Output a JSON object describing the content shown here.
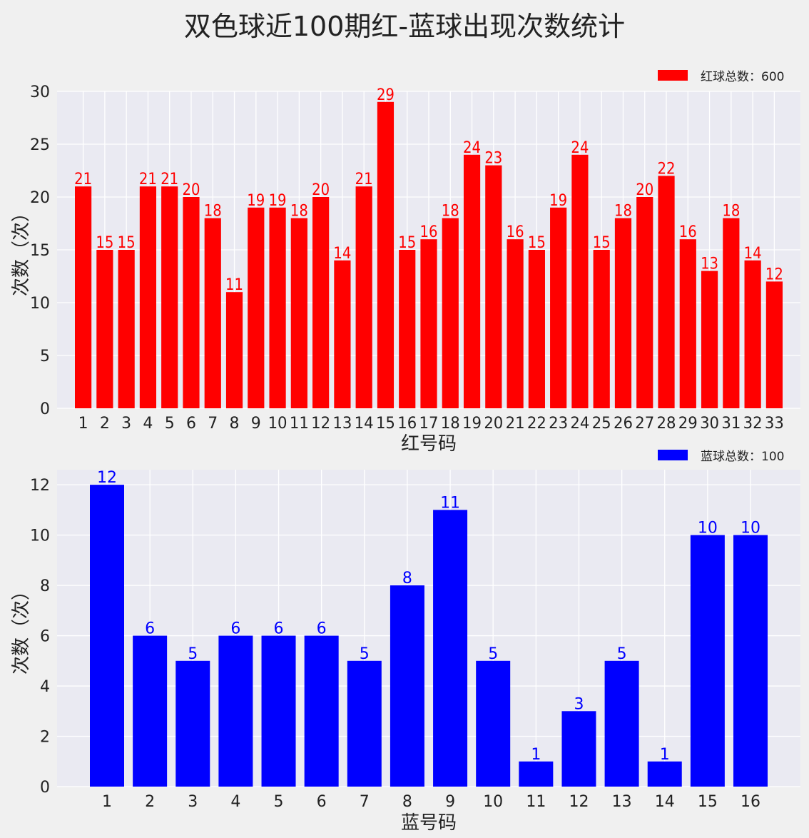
{
  "title": "双色球近100期红-蓝球出现次数统计",
  "chart_data": [
    {
      "type": "bar",
      "name": "red",
      "color": "#ff0000",
      "legend": "红球总数：600",
      "legend_position": "top-right",
      "xlabel": "红号码",
      "ylabel": "次数（次）",
      "ylim": [
        0,
        30
      ],
      "yticks": [
        0,
        5,
        10,
        15,
        20,
        25,
        30
      ],
      "grid": true,
      "categories": [
        "1",
        "2",
        "3",
        "4",
        "5",
        "6",
        "7",
        "8",
        "9",
        "10",
        "11",
        "12",
        "13",
        "14",
        "15",
        "16",
        "17",
        "18",
        "19",
        "20",
        "21",
        "22",
        "23",
        "24",
        "25",
        "26",
        "27",
        "28",
        "29",
        "30",
        "31",
        "32",
        "33"
      ],
      "values": [
        21,
        15,
        15,
        21,
        21,
        20,
        18,
        11,
        19,
        19,
        18,
        20,
        14,
        21,
        29,
        15,
        16,
        18,
        24,
        23,
        16,
        15,
        19,
        24,
        15,
        18,
        20,
        22,
        16,
        13,
        18,
        14,
        12
      ]
    },
    {
      "type": "bar",
      "name": "blue",
      "color": "#0000ff",
      "legend": "蓝球总数：100",
      "legend_position": "top-right",
      "xlabel": "蓝号码",
      "ylabel": "次数（次）",
      "ylim": [
        0,
        12.6
      ],
      "yticks": [
        0,
        2,
        4,
        6,
        8,
        10,
        12
      ],
      "grid": true,
      "categories": [
        "1",
        "2",
        "3",
        "4",
        "5",
        "6",
        "7",
        "8",
        "9",
        "10",
        "11",
        "12",
        "13",
        "14",
        "15",
        "16"
      ],
      "values": [
        12,
        6,
        5,
        6,
        6,
        6,
        5,
        8,
        11,
        5,
        1,
        3,
        5,
        1,
        10,
        10
      ]
    }
  ]
}
